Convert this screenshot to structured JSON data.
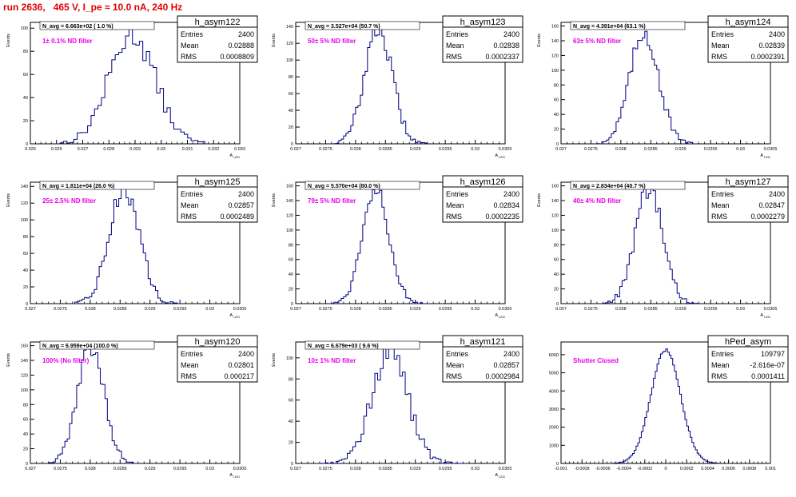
{
  "title": "run 2636,   465 V, I_pe ≈ 10.0 nA, 240 Hz",
  "chart_data": [
    {
      "type": "histogram",
      "name": "h_asym122",
      "stats": {
        "Entries": "2400",
        "Mean": "0.02888",
        "RMS": "0.0008809"
      },
      "navg": "N_avg = 6.663e+02 ( 1.0 %)",
      "filter": "1± 0.1% ND filter",
      "xlabel": "A_LED",
      "ylabel": "Events",
      "xlim": [
        0.025,
        0.033
      ],
      "ylim": [
        0,
        105
      ],
      "xticks": [
        0.025,
        0.026,
        0.027,
        0.028,
        0.029,
        0.03,
        0.031,
        0.032,
        0.033
      ],
      "xtick_labels": [
        "0.025",
        "0.026",
        "0.027",
        "0.028",
        "0.029",
        "0.03",
        "0.031",
        "0.032",
        "0.033"
      ],
      "yticks": [
        0,
        20,
        40,
        60,
        80,
        100
      ],
      "xmin_bin": 0.026,
      "xmax_bin": 0.0318,
      "nbins": 44,
      "mean": 0.02888,
      "sigma": 0.00088,
      "peak": 95
    },
    {
      "type": "histogram",
      "name": "h_asym123",
      "stats": {
        "Entries": "2400",
        "Mean": "0.02838",
        "RMS": "0.0002337"
      },
      "navg": "N_avg = 3.527e+04 (50.7 %)",
      "filter": "50± 5% ND filter",
      "xlabel": "A_LED",
      "ylabel": "Events",
      "xlim": [
        0.027,
        0.0305
      ],
      "ylim": [
        0,
        145
      ],
      "xticks": [
        0.027,
        0.0275,
        0.028,
        0.0285,
        0.029,
        0.0295,
        0.03,
        0.0305
      ],
      "xtick_labels": [
        "0.027",
        "0.0275",
        "0.028",
        "0.0285",
        "0.029",
        "0.0295",
        "0.03",
        "0.0305"
      ],
      "yticks": [
        0,
        20,
        40,
        60,
        80,
        100,
        120,
        140
      ],
      "xmin_bin": 0.0276,
      "xmax_bin": 0.0292,
      "nbins": 40,
      "mean": 0.02838,
      "sigma": 0.00023,
      "peak": 138
    },
    {
      "type": "histogram",
      "name": "h_asym124",
      "stats": {
        "Entries": "2400",
        "Mean": "0.02839",
        "RMS": "0.0002391"
      },
      "navg": "N_avg = 4.391e+04 (63.1 %)",
      "filter": "63± 5% ND filter",
      "xlabel": "A_LED",
      "ylabel": "Events",
      "xlim": [
        0.027,
        0.0305
      ],
      "ylim": [
        0,
        165
      ],
      "xticks": [
        0.027,
        0.0275,
        0.028,
        0.0285,
        0.029,
        0.0295,
        0.03,
        0.0305
      ],
      "xtick_labels": [
        "0.027",
        "0.0275",
        "0.028",
        "0.0285",
        "0.029",
        "0.0295",
        "0.03",
        "0.0305"
      ],
      "yticks": [
        0,
        20,
        40,
        60,
        80,
        100,
        120,
        140,
        160
      ],
      "xmin_bin": 0.0276,
      "xmax_bin": 0.0292,
      "nbins": 40,
      "mean": 0.02839,
      "sigma": 0.00024,
      "peak": 152
    },
    {
      "type": "histogram",
      "name": "h_asym125",
      "stats": {
        "Entries": "2400",
        "Mean": "0.02857",
        "RMS": "0.0002489"
      },
      "navg": "N_avg = 1.811e+04 (26.0 %)",
      "filter": "25± 2.5% ND filter",
      "xlabel": "A_LED",
      "ylabel": "Events",
      "xlim": [
        0.027,
        0.0305
      ],
      "ylim": [
        0,
        145
      ],
      "xticks": [
        0.027,
        0.0275,
        0.028,
        0.0285,
        0.029,
        0.0295,
        0.03,
        0.0305
      ],
      "xtick_labels": [
        "0.027",
        "0.0275",
        "0.028",
        "0.0285",
        "0.029",
        "0.0295",
        "0.03",
        "0.0305"
      ],
      "yticks": [
        0,
        20,
        40,
        60,
        80,
        100,
        120,
        140
      ],
      "xmin_bin": 0.0277,
      "xmax_bin": 0.0295,
      "nbins": 44,
      "mean": 0.02857,
      "sigma": 0.00025,
      "peak": 138
    },
    {
      "type": "histogram",
      "name": "h_asym126",
      "stats": {
        "Entries": "2400",
        "Mean": "0.02834",
        "RMS": "0.0002235"
      },
      "navg": "N_avg = 5.570e+04 (80.0 %)",
      "filter": "79± 5% ND filter",
      "xlabel": "A_LED",
      "ylabel": "Events",
      "xlim": [
        0.027,
        0.0305
      ],
      "ylim": [
        0,
        165
      ],
      "xticks": [
        0.027,
        0.0275,
        0.028,
        0.0285,
        0.029,
        0.0295,
        0.03,
        0.0305
      ],
      "xtick_labels": [
        "0.027",
        "0.0275",
        "0.028",
        "0.0285",
        "0.029",
        "0.0295",
        "0.03",
        "0.0305"
      ],
      "yticks": [
        0,
        20,
        40,
        60,
        80,
        100,
        120,
        140,
        160
      ],
      "xmin_bin": 0.0276,
      "xmax_bin": 0.0292,
      "nbins": 40,
      "mean": 0.02834,
      "sigma": 0.00022,
      "peak": 160
    },
    {
      "type": "histogram",
      "name": "h_asym127",
      "stats": {
        "Entries": "2400",
        "Mean": "0.02847",
        "RMS": "0.0002279"
      },
      "navg": "N_avg = 2.834e+04 (40.7 %)",
      "filter": "40± 4% ND filter",
      "xlabel": "A_LED",
      "ylabel": "Events",
      "xlim": [
        0.027,
        0.0305
      ],
      "ylim": [
        0,
        165
      ],
      "xticks": [
        0.027,
        0.0275,
        0.028,
        0.0285,
        0.029,
        0.0295,
        0.03,
        0.0305
      ],
      "xtick_labels": [
        "0.027",
        "0.0275",
        "0.028",
        "0.0285",
        "0.029",
        "0.0295",
        "0.03",
        "0.0305"
      ],
      "yticks": [
        0,
        20,
        40,
        60,
        80,
        100,
        120,
        140,
        160
      ],
      "xmin_bin": 0.0277,
      "xmax_bin": 0.0293,
      "nbins": 40,
      "mean": 0.02847,
      "sigma": 0.00023,
      "peak": 156
    },
    {
      "type": "histogram",
      "name": "h_asym120",
      "stats": {
        "Entries": "2400",
        "Mean": "0.02801",
        "RMS": "0.000217"
      },
      "navg": "N_avg = 6.959e+04 (100.0 %)",
      "filter": "100% (No filter)",
      "xlabel": "A_LED",
      "ylabel": "Events",
      "xlim": [
        0.027,
        0.0305
      ],
      "ylim": [
        0,
        165
      ],
      "xticks": [
        0.027,
        0.0275,
        0.028,
        0.0285,
        0.029,
        0.0295,
        0.03,
        0.0305
      ],
      "xtick_labels": [
        "0.027",
        "0.0275",
        "0.028",
        "0.0285",
        "0.029",
        "0.0295",
        "0.03",
        "0.0305"
      ],
      "yticks": [
        0,
        20,
        40,
        60,
        80,
        100,
        120,
        140,
        160
      ],
      "xmin_bin": 0.0273,
      "xmax_bin": 0.0288,
      "nbins": 38,
      "mean": 0.02801,
      "sigma": 0.00022,
      "peak": 160
    },
    {
      "type": "histogram",
      "name": "h_asym121",
      "stats": {
        "Entries": "2400",
        "Mean": "0.02857",
        "RMS": "0.0002984"
      },
      "navg": "N_avg = 6.679e+03 ( 9.6 %)",
      "filter": "10± 1% ND filter",
      "xlabel": "A_LED",
      "ylabel": "Events",
      "xlim": [
        0.027,
        0.0305
      ],
      "ylim": [
        0,
        115
      ],
      "xticks": [
        0.027,
        0.0275,
        0.028,
        0.0285,
        0.029,
        0.0295,
        0.03,
        0.0305
      ],
      "xtick_labels": [
        "0.027",
        "0.0275",
        "0.028",
        "0.0285",
        "0.029",
        "0.0295",
        "0.03",
        "0.0305"
      ],
      "yticks": [
        0,
        20,
        40,
        60,
        80,
        100
      ],
      "xmin_bin": 0.0274,
      "xmax_bin": 0.0298,
      "nbins": 52,
      "mean": 0.02857,
      "sigma": 0.0003,
      "peak": 106
    },
    {
      "type": "histogram",
      "name": "hPed_asym",
      "stats": {
        "Entries": "109797",
        "Mean": "-2.616e-07",
        "RMS": "0.0001411"
      },
      "navg": "",
      "filter": "Shutter Closed",
      "xlabel": "",
      "ylabel": "",
      "xlim": [
        -0.001,
        0.001
      ],
      "ylim": [
        0,
        6700
      ],
      "xticks": [
        -0.001,
        -0.0008,
        -0.0006,
        -0.0004,
        -0.0002,
        0,
        0.0002,
        0.0004,
        0.0006,
        0.0008,
        0.001
      ],
      "xtick_labels": [
        "-0.001",
        "-0.0008",
        "-0.0006",
        "-0.0004",
        "-0.0002",
        "0",
        "0.0002",
        "0.0004",
        "0.0006",
        "0.0008",
        "0.001"
      ],
      "yticks": [
        0,
        1000,
        2000,
        3000,
        4000,
        5000,
        6000
      ],
      "xmin_bin": -0.0005,
      "xmax_bin": 0.0005,
      "nbins": 60,
      "mean": 0,
      "sigma": 0.000141,
      "peak": 6250
    }
  ]
}
